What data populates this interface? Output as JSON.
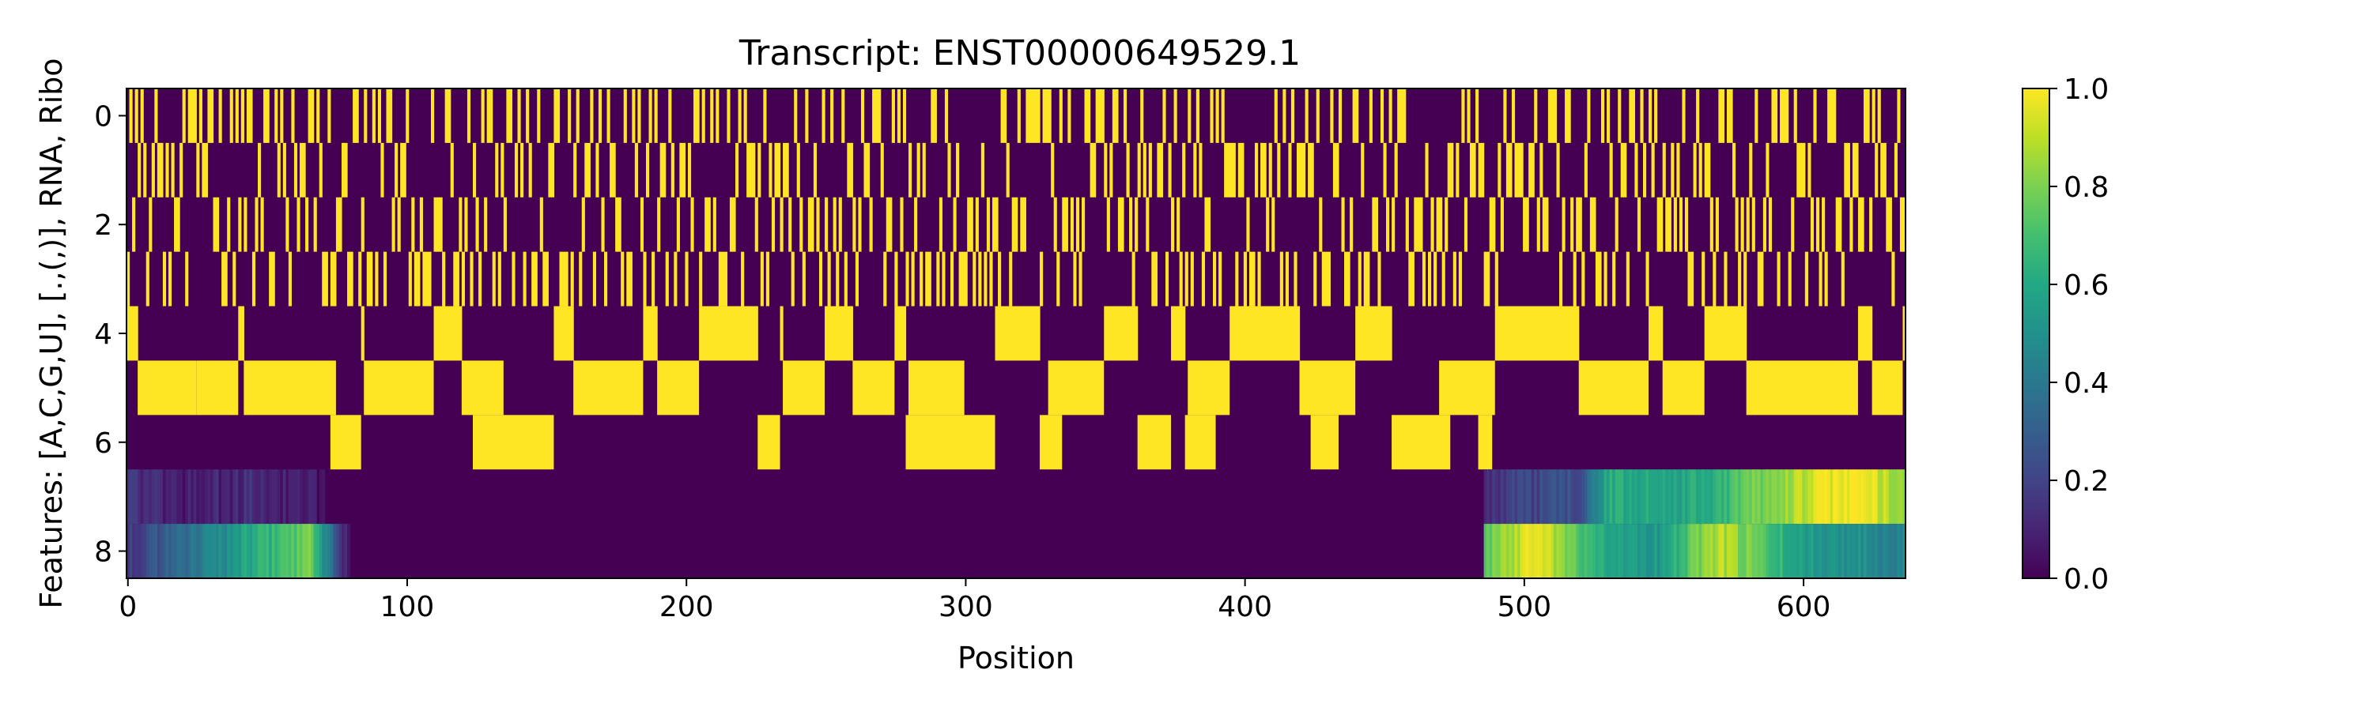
{
  "chart_data": {
    "type": "heatmap",
    "title": "Transcript: ENST00000649529.1",
    "xlabel": "Position",
    "ylabel": "Features: [A,C,G,U], [.,(,)], RNA, Ribo",
    "xlim": [
      0,
      637
    ],
    "ylim": [
      8.5,
      -0.5
    ],
    "n_positions": 637,
    "n_features": 9,
    "x_ticks": [
      0,
      100,
      200,
      300,
      400,
      500,
      600
    ],
    "y_ticks": [
      0,
      2,
      4,
      6,
      8
    ],
    "colorbar": {
      "vmin": 0.0,
      "vmax": 1.0,
      "ticks": [
        "0.0",
        "0.2",
        "0.4",
        "0.6",
        "0.8",
        "1.0"
      ],
      "colormap": "viridis"
    },
    "rows": {
      "binary_feature_rows": [
        0,
        1,
        2,
        3,
        4,
        5,
        6
      ],
      "continuous_feature_rows": [
        7,
        8
      ],
      "row_5_paired_dot_blocks": [
        [
          4,
          25
        ],
        [
          25,
          40
        ],
        [
          42,
          75
        ],
        [
          85,
          110
        ],
        [
          120,
          135
        ],
        [
          160,
          185
        ],
        [
          190,
          205
        ],
        [
          235,
          250
        ],
        [
          260,
          275
        ],
        [
          280,
          300
        ],
        [
          330,
          350
        ],
        [
          380,
          395
        ],
        [
          420,
          440
        ],
        [
          470,
          490
        ],
        [
          520,
          545
        ],
        [
          550,
          565
        ],
        [
          580,
          620
        ],
        [
          625,
          636
        ]
      ],
      "row_6_blocks": [
        [
          73,
          84
        ],
        [
          124,
          153
        ],
        [
          226,
          234
        ],
        [
          279,
          311
        ],
        [
          327,
          335
        ],
        [
          362,
          374
        ],
        [
          379,
          390
        ],
        [
          424,
          434
        ],
        [
          453,
          474
        ],
        [
          484,
          489
        ]
      ],
      "row_7_profile": [
        [
          0,
          0.15
        ],
        [
          20,
          0.08
        ],
        [
          45,
          0.12
        ],
        [
          80,
          0.0
        ],
        [
          485,
          0.0
        ],
        [
          486,
          0.15
        ],
        [
          520,
          0.25
        ],
        [
          530,
          0.6
        ],
        [
          565,
          0.6
        ],
        [
          585,
          0.8
        ],
        [
          615,
          1.0
        ],
        [
          637,
          0.85
        ]
      ],
      "row_8_profile": [
        [
          0,
          0.15
        ],
        [
          20,
          0.35
        ],
        [
          45,
          0.6
        ],
        [
          65,
          0.78
        ],
        [
          80,
          0.0
        ],
        [
          485,
          0.0
        ],
        [
          486,
          0.75
        ],
        [
          505,
          1.0
        ],
        [
          520,
          0.7
        ],
        [
          545,
          0.5
        ],
        [
          570,
          0.9
        ],
        [
          600,
          0.55
        ],
        [
          637,
          0.45
        ]
      ]
    }
  },
  "colors": {
    "viridis_low": "#440154",
    "viridis_high": "#fde725",
    "axis": "#000000",
    "background": "#ffffff"
  }
}
